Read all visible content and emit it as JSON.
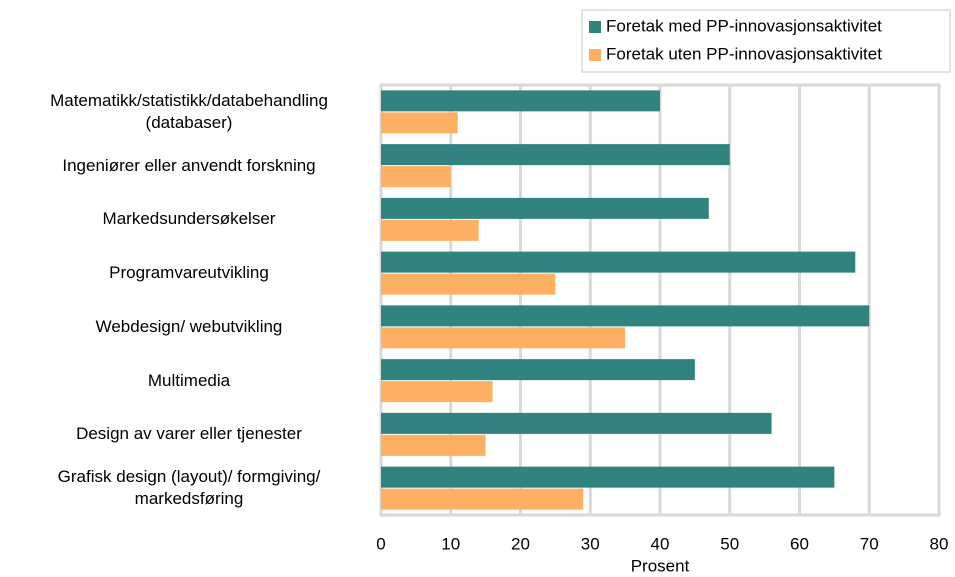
{
  "chart_data": {
    "type": "hbar",
    "categories": [
      "Matematikk/statistikk/databehandling\n(databaser)",
      "Ingeniører eller anvendt forskning",
      "Markedsundersøkelser",
      "Programvareutvikling",
      "Webdesign/ webutvikling",
      "Multimedia",
      "Design av varer eller tjenester",
      "Grafisk design (layout)/ formgiving/\nmarkedsføring"
    ],
    "series": [
      {
        "name": "Foretak med PP-innovasjonsaktivitet",
        "color": "#31837f",
        "values": [
          40,
          50,
          47,
          68,
          70,
          45,
          56,
          65
        ]
      },
      {
        "name": "Foretak uten PP-innovasjonsaktivitet",
        "color": "#fdb061",
        "values": [
          11,
          10,
          14,
          25,
          35,
          16,
          15,
          29
        ]
      }
    ],
    "xlabel": "Prosent",
    "xlim": [
      0,
      80
    ],
    "xticks": [
      0,
      10,
      20,
      30,
      40,
      50,
      60,
      70,
      80
    ],
    "grid": true,
    "legend": "top-right"
  }
}
